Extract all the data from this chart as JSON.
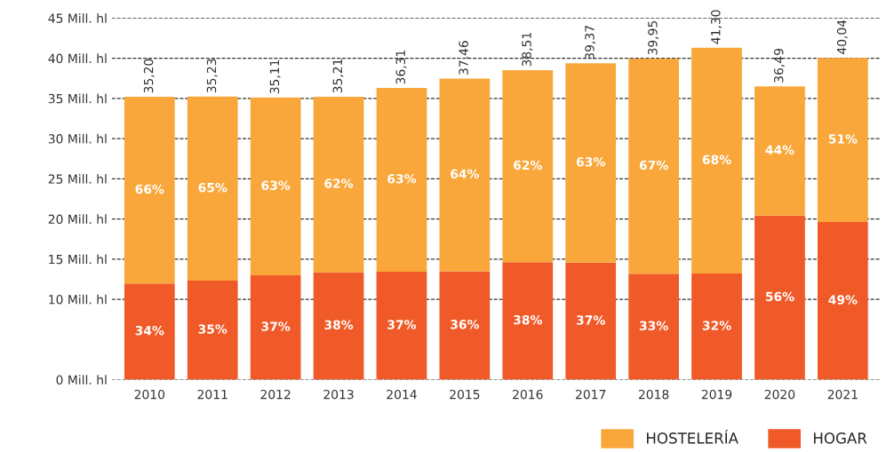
{
  "chart_data": {
    "type": "bar",
    "stacked": true,
    "categories": [
      "2010",
      "2011",
      "2012",
      "2013",
      "2014",
      "2015",
      "2016",
      "2017",
      "2018",
      "2019",
      "2020",
      "2021"
    ],
    "series": [
      {
        "name": "HOGAR",
        "color": "#f05a28",
        "values": [
          11.97,
          12.33,
          12.99,
          13.38,
          13.43,
          13.49,
          14.63,
          14.57,
          13.18,
          13.22,
          20.43,
          19.62
        ]
      },
      {
        "name": "HOSTELERÍA",
        "color": "#f9a73a",
        "values": [
          23.23,
          22.9,
          22.12,
          21.83,
          22.88,
          23.97,
          23.88,
          24.8,
          26.77,
          28.08,
          16.06,
          20.42
        ]
      }
    ],
    "totals": [
      "35,20",
      "35,23",
      "35,11",
      "35,21",
      "36,31",
      "37,46",
      "38,51",
      "39,37",
      "39,95",
      "41,30",
      "36,49",
      "40,04"
    ],
    "annotations": [
      "34%",
      "35%",
      "37%",
      "38%",
      "37%",
      "36%",
      "38%",
      "37%",
      "33%",
      "32%",
      "56%",
      "49%",
      "66%",
      "65%",
      "63%",
      "62%",
      "63%",
      "64%",
      "62%",
      "63%",
      "67%",
      "68%",
      "44%",
      "51%"
    ],
    "ylim": [
      0,
      45
    ],
    "yticks": [
      {
        "value": 0,
        "label": "0 Mill. hl"
      },
      {
        "value": 10,
        "label": "10 Mill. hl"
      },
      {
        "value": 15,
        "label": "15 Mill. hl"
      },
      {
        "value": 20,
        "label": "20 Mill. hl"
      },
      {
        "value": 25,
        "label": "25 Mill. hl"
      },
      {
        "value": 30,
        "label": "30 Mill. hl"
      },
      {
        "value": 35,
        "label": "35 Mill. hl"
      },
      {
        "value": 40,
        "label": "40 Mill. hl"
      },
      {
        "value": 45,
        "label": "45 Mill. hl"
      }
    ],
    "grid": "y",
    "legend": "bottom right"
  }
}
